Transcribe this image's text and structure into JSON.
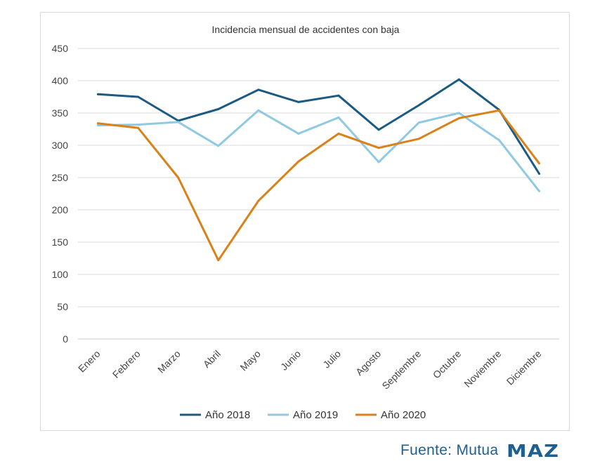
{
  "chart_data": {
    "type": "line",
    "title": "Incidencia mensual de accidentes con baja",
    "xlabel": "",
    "ylabel": "",
    "ylim": [
      0,
      450
    ],
    "yticks": [
      0,
      50,
      100,
      150,
      200,
      250,
      300,
      350,
      400,
      450
    ],
    "grid": true,
    "legend_position": "bottom",
    "categories": [
      "Enero",
      "Febrero",
      "Marzo",
      "Abril",
      "Mayo",
      "Junio",
      "Julio",
      "Agosto",
      "Septiembre",
      "Octubre",
      "Noviembre",
      "Diciembre"
    ],
    "series": [
      {
        "name": "Año 2018",
        "color": "#1b5a82",
        "values": [
          379,
          375,
          338,
          356,
          386,
          367,
          377,
          324,
          362,
          402,
          355,
          256
        ]
      },
      {
        "name": "Año 2019",
        "color": "#8fc9e2",
        "values": [
          331,
          332,
          336,
          299,
          354,
          318,
          343,
          274,
          335,
          350,
          308,
          229
        ]
      },
      {
        "name": "Año 2020",
        "color": "#d9821a",
        "values": [
          334,
          327,
          250,
          122,
          214,
          275,
          318,
          296,
          310,
          342,
          354,
          272
        ]
      }
    ]
  },
  "source": {
    "text": "Fuente: Mutua",
    "logo": "MAZ"
  }
}
